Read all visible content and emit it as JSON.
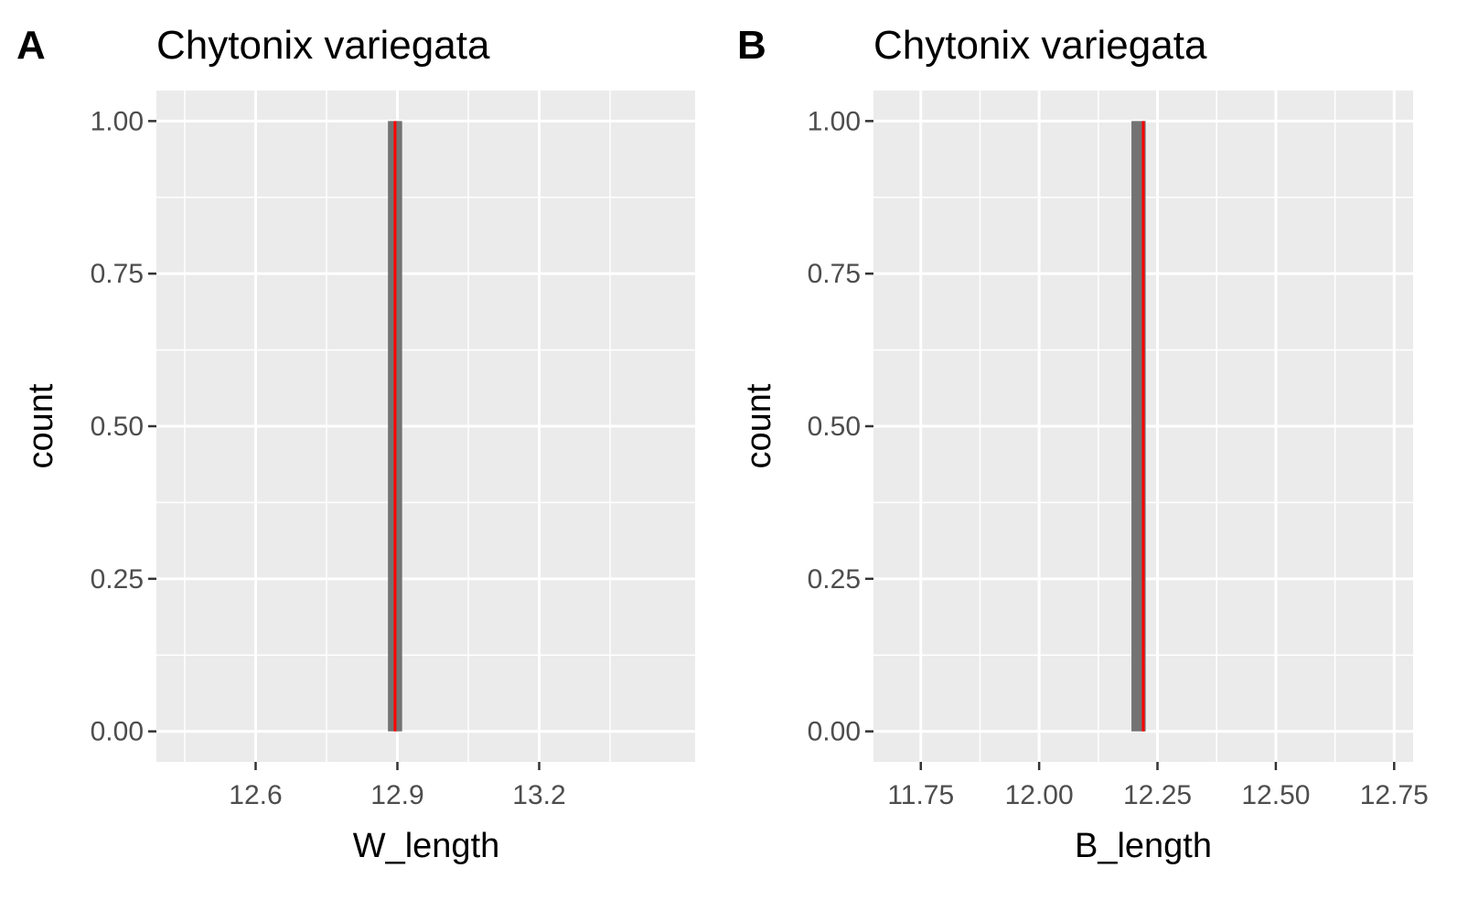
{
  "colors": {
    "panel_background": "#ebebeb",
    "grid": "#ffffff",
    "bar_fill": "#737373",
    "reference_line": "#ff0000",
    "tick_text": "#4d4d4d",
    "tick_mark": "#333333"
  },
  "chart_data": [
    {
      "type": "bar",
      "panel_label": "A",
      "title": "Chytonix variegata",
      "xlabel": "W_length",
      "ylabel": "count",
      "xlim": [
        12.39,
        13.53
      ],
      "ylim": [
        -0.05,
        1.05
      ],
      "xticks": [
        12.6,
        12.9,
        13.2
      ],
      "xtick_labels": [
        "12.6",
        "12.9",
        "13.2"
      ],
      "yticks": [
        0.0,
        0.25,
        0.5,
        0.75,
        1.0
      ],
      "ytick_labels": [
        "0.00",
        "0.25",
        "0.50",
        "0.75",
        "1.00"
      ],
      "bars": [
        {
          "xmin": 12.88,
          "xmax": 12.91,
          "count": 1
        }
      ],
      "reference_line": {
        "x": 12.895
      },
      "grid": true
    },
    {
      "type": "bar",
      "panel_label": "B",
      "title": "Chytonix variegata",
      "xlabel": "B_length",
      "ylabel": "count",
      "xlim": [
        11.65,
        12.79
      ],
      "ylim": [
        -0.05,
        1.05
      ],
      "xticks": [
        11.75,
        12.0,
        12.25,
        12.5,
        12.75
      ],
      "xtick_labels": [
        "11.75",
        "12.00",
        "12.25",
        "12.50",
        "12.75"
      ],
      "yticks": [
        0.0,
        0.25,
        0.5,
        0.75,
        1.0
      ],
      "ytick_labels": [
        "0.00",
        "0.25",
        "0.50",
        "0.75",
        "1.00"
      ],
      "bars": [
        {
          "xmin": 12.195,
          "xmax": 12.225,
          "count": 1
        }
      ],
      "reference_line": {
        "x": 12.22
      },
      "grid": true
    }
  ]
}
